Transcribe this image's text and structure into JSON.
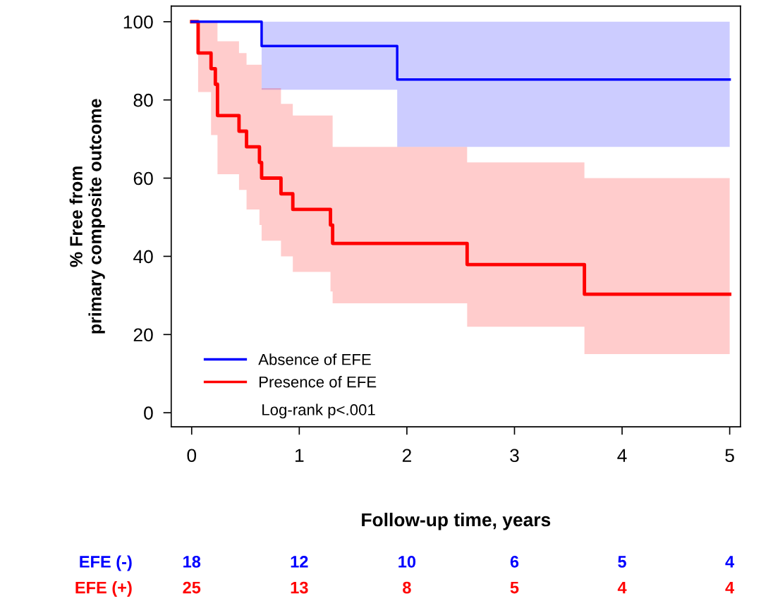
{
  "chart_data": [
    {
      "type": "step",
      "xlabel": "Follow-up time, years",
      "ylabel": "% Free from\nprimary composite outcome",
      "xlim": [
        -0.19,
        5.1
      ],
      "ylim": [
        -3.6,
        104
      ],
      "xticks": [
        0,
        1,
        2,
        3,
        4,
        5
      ],
      "yticks": [
        0,
        20,
        40,
        60,
        80,
        100
      ],
      "grid": false,
      "legend": "bottom left",
      "line_style": "solid",
      "marker": "none",
      "annotations": [
        "Log-rank p<.001"
      ],
      "series": [
        {
          "name": "Absence of EFE",
          "color": "#0000ff",
          "x": [
            0,
            0.65,
            1.91,
            5
          ],
          "values": [
            100,
            93.8,
            85.2,
            85.2
          ],
          "lower": [
            100,
            82.6,
            68,
            68
          ],
          "upper": [
            100,
            100,
            100,
            100
          ]
        },
        {
          "name": "Presence of EFE",
          "color": "#ff0000",
          "x": [
            0,
            0.06,
            0.18,
            0.22,
            0.24,
            0.44,
            0.51,
            0.63,
            0.65,
            0.83,
            0.94,
            1.29,
            1.31,
            2.56,
            3.65,
            5
          ],
          "values": [
            100,
            92,
            88,
            84,
            76,
            72,
            68,
            64,
            60,
            56,
            52,
            48,
            43.3,
            37.9,
            30.3,
            30.3
          ],
          "lower": [
            100,
            82,
            71,
            71,
            61,
            57,
            52,
            48,
            44,
            40,
            36,
            31,
            28,
            22,
            15,
            15
          ],
          "upper": [
            100,
            100,
            100,
            100,
            95,
            92,
            89,
            89,
            83,
            79,
            76,
            76,
            68,
            64,
            60,
            60
          ]
        }
      ]
    },
    {
      "type": "other",
      "annotations": [
        "EFE (-)",
        "18",
        "12",
        "10",
        "6",
        "5",
        "4",
        "EFE (+)",
        "25",
        "13",
        "8",
        "5",
        "4",
        "4"
      ],
      "colors": [
        "#0000ff",
        "#0000ff",
        "#0000ff",
        "#0000ff",
        "#0000ff",
        "#0000ff",
        "#0000ff",
        "#ff0000",
        "#ff0000",
        "#ff0000",
        "#ff0000",
        "#ff0000",
        "#ff0000",
        "#ff0000"
      ]
    }
  ]
}
